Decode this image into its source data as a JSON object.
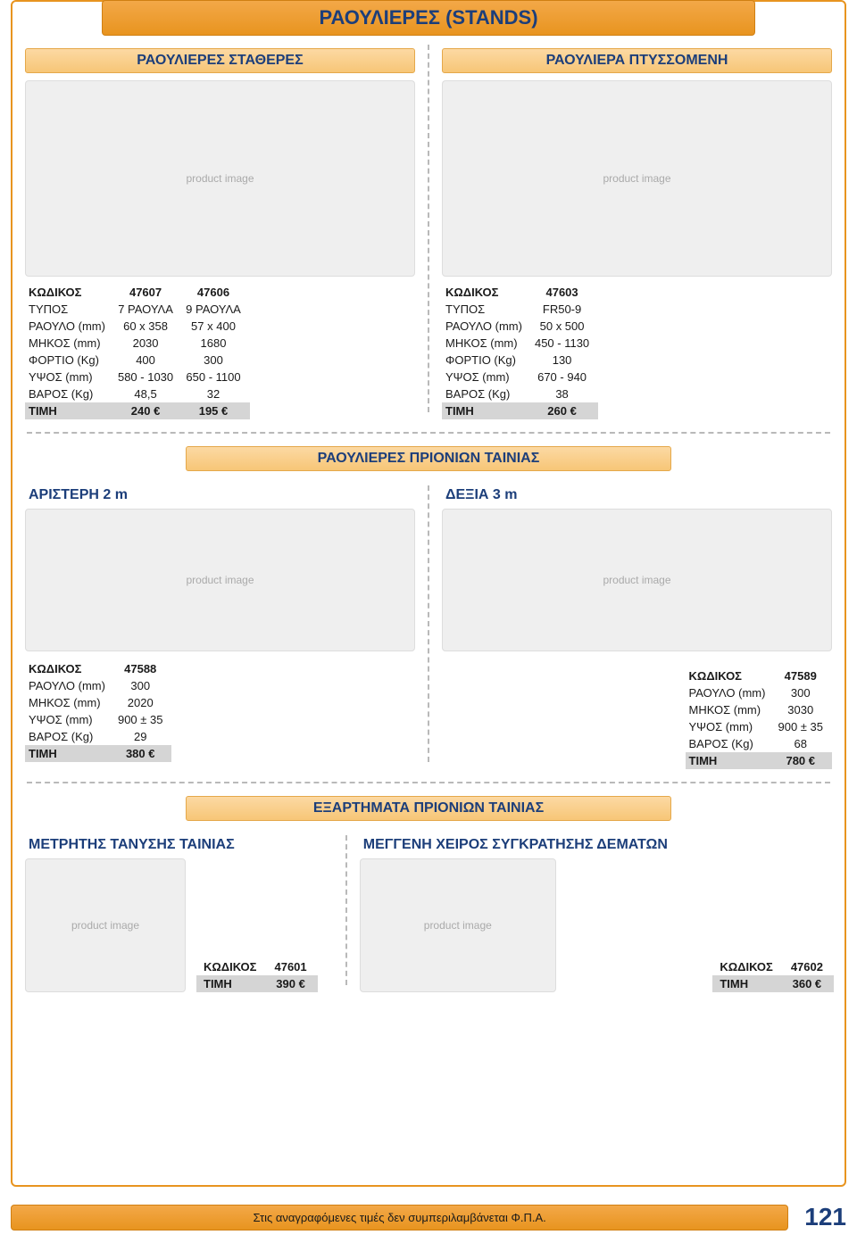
{
  "colors": {
    "accent_orange": "#e8941f",
    "accent_orange_light": "#f7c677",
    "heading_blue": "#1c3e7a",
    "price_bg": "#d5d5d5",
    "divider": "#b9b9b9"
  },
  "page_number": "121",
  "footer_note": "Στις αναγραφόμενες τιμές δεν συμπεριλαμβάνεται Φ.Π.Α.",
  "main_title": "ΡΑΟΥΛΙΕΡΕΣ (STANDS)",
  "top": {
    "left_title": "ΡΑΟΥΛΙΕΡΕΣ ΣΤΑΘΕΡΕΣ",
    "right_title": "ΡΑΟΥΛΙΕΡΑ ΠΤΥΣΣΟΜΕΝΗ",
    "left_table": {
      "rows": [
        {
          "label": "ΚΩΔΙΚΟΣ",
          "c1": "47607",
          "c2": "47606",
          "hdr": true
        },
        {
          "label": "ΤΥΠΟΣ",
          "c1": "7 ΡΑΟΥΛΑ",
          "c2": "9 ΡΑΟΥΛΑ"
        },
        {
          "label": "ΡΑΟΥΛΟ (mm)",
          "c1": "60 x 358",
          "c2": "57 x 400"
        },
        {
          "label": "ΜΗΚΟΣ (mm)",
          "c1": "2030",
          "c2": "1680"
        },
        {
          "label": "ΦΟΡΤΙΟ (Kg)",
          "c1": "400",
          "c2": "300"
        },
        {
          "label": "ΥΨΟΣ (mm)",
          "c1": "580 - 1030",
          "c2": "650 - 1100"
        },
        {
          "label": "ΒΑΡΟΣ (Kg)",
          "c1": "48,5",
          "c2": "32"
        },
        {
          "label": "ΤΙΜΗ",
          "c1": "240 €",
          "c2": "195 €",
          "price": true
        }
      ]
    },
    "right_table": {
      "rows": [
        {
          "label": "ΚΩΔΙΚΟΣ",
          "c1": "47603",
          "hdr": true
        },
        {
          "label": "ΤΥΠΟΣ",
          "c1": "FR50-9"
        },
        {
          "label": "ΡΑΟΥΛΟ (mm)",
          "c1": "50 x 500"
        },
        {
          "label": "ΜΗΚΟΣ (mm)",
          "c1": "450 - 1130"
        },
        {
          "label": "ΦΟΡΤΙΟ (Kg)",
          "c1": "130"
        },
        {
          "label": "ΥΨΟΣ (mm)",
          "c1": "670 - 940"
        },
        {
          "label": "ΒΑΡΟΣ (Kg)",
          "c1": "38"
        },
        {
          "label": "ΤΙΜΗ",
          "c1": "260 €",
          "price": true
        }
      ]
    }
  },
  "mid": {
    "bar_title": "ΡΑΟΥΛΙΕΡΕΣ ΠΡΙΟΝΙΩΝ ΤΑΙΝΙΑΣ",
    "left_label": "ΑΡΙΣΤΕΡΗ 2 m",
    "right_label": "ΔΕΞΙΑ 3 m",
    "left_table": {
      "rows": [
        {
          "label": "ΚΩΔΙΚΟΣ",
          "c1": "47588",
          "hdr": true
        },
        {
          "label": "ΡΑΟΥΛΟ (mm)",
          "c1": "300"
        },
        {
          "label": "ΜΗΚΟΣ (mm)",
          "c1": "2020"
        },
        {
          "label": "ΥΨΟΣ (mm)",
          "c1": "900 ± 35"
        },
        {
          "label": "ΒΑΡΟΣ (Kg)",
          "c1": "29"
        },
        {
          "label": "ΤΙΜΗ",
          "c1": "380 €",
          "price": true
        }
      ]
    },
    "right_table": {
      "rows": [
        {
          "label": "ΚΩΔΙΚΟΣ",
          "c1": "47589",
          "hdr": true
        },
        {
          "label": "ΡΑΟΥΛΟ (mm)",
          "c1": "300"
        },
        {
          "label": "ΜΗΚΟΣ (mm)",
          "c1": "3030"
        },
        {
          "label": "ΥΨΟΣ (mm)",
          "c1": "900 ± 35"
        },
        {
          "label": "ΒΑΡΟΣ (Kg)",
          "c1": "68"
        },
        {
          "label": "ΤΙΜΗ",
          "c1": "780 €",
          "price": true
        }
      ]
    }
  },
  "bottom": {
    "bar_title": "ΕΞΑΡΤΗΜΑΤΑ ΠΡΙΟΝΙΩΝ ΤΑΙΝΙΑΣ",
    "left_label": "ΜΕΤΡΗΤΗΣ  ΤΑΝΥΣΗΣ ΤΑΙΝΙΑΣ",
    "right_label": "ΜΕΓΓΕΝΗ ΧΕΙΡΟΣ ΣΥΓΚΡΑΤΗΣΗΣ  ΔΕΜΑΤΩΝ",
    "left_table": {
      "rows": [
        {
          "label": "ΚΩΔΙΚΟΣ",
          "c1": "47601",
          "hdr": true
        },
        {
          "label": "ΤΙΜΗ",
          "c1": "390 €",
          "price": true
        }
      ]
    },
    "right_table": {
      "rows": [
        {
          "label": "ΚΩΔΙΚΟΣ",
          "c1": "47602",
          "hdr": true
        },
        {
          "label": "ΤΙΜΗ",
          "c1": "360 €",
          "price": true
        }
      ]
    }
  }
}
